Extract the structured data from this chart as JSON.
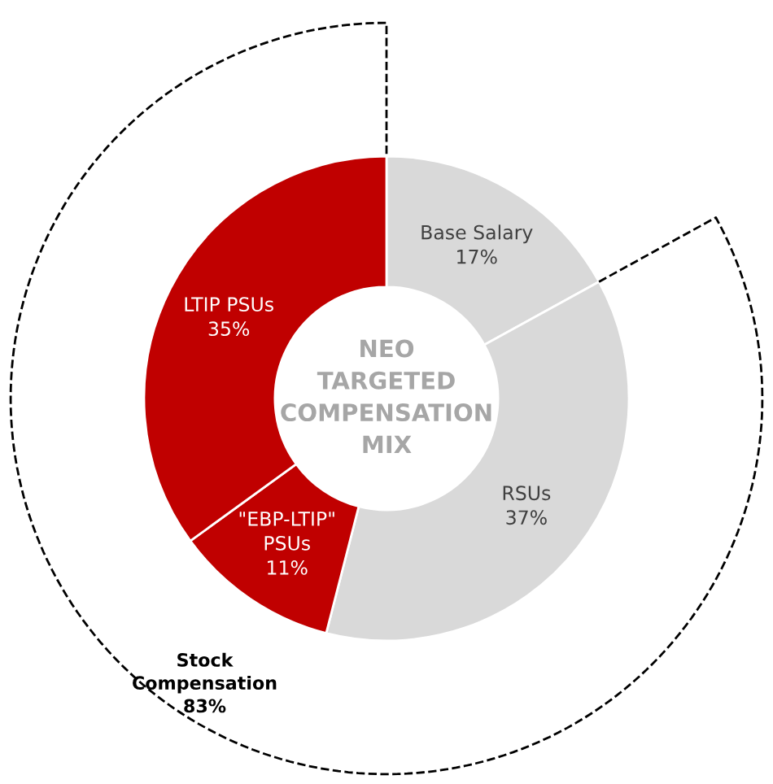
{
  "chart_data": {
    "type": "donut",
    "title": "NEO\nTARGETED\nCOMPENSATION\nMIX",
    "categories": [
      "Base Salary",
      "RSUs",
      "\"EBP-LTIP\"\nPSUs",
      "LTIP PSUs"
    ],
    "values": [
      17,
      37,
      11,
      35
    ],
    "value_labels": [
      "17%",
      "37%",
      "11%",
      "35%"
    ],
    "colors": [
      "#d9d9d9",
      "#d9d9d9",
      "#c00000",
      "#c00000"
    ],
    "annotations": [
      "Stock\nCompensation\n83%"
    ],
    "legend": false
  }
}
